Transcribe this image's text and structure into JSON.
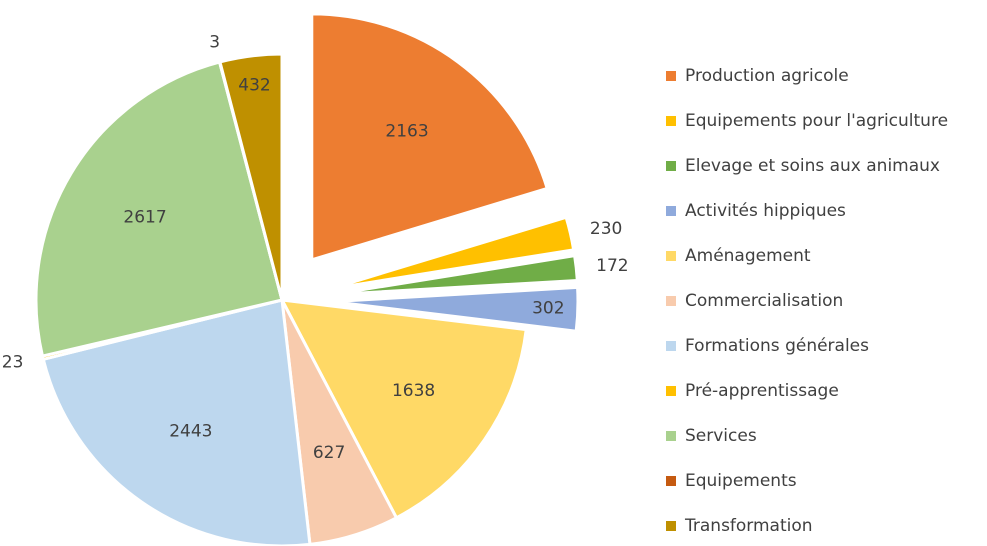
{
  "chart_data": {
    "type": "pie",
    "categories": [
      "Production agricole",
      "Equipements pour l'agriculture",
      "Elevage et soins aux animaux",
      "Activités hippiques",
      "Aménagement",
      "Commercialisation",
      "Formations générales",
      "Pré-apprentissage",
      "Services",
      "Equipements",
      "Transformation"
    ],
    "values": [
      2163,
      230,
      172,
      302,
      1638,
      627,
      2443,
      23,
      2617,
      3,
      432
    ],
    "colors": [
      "#ED7D31",
      "#FFC000",
      "#70AD47",
      "#8FAADC",
      "#FFD966",
      "#F8CBAD",
      "#BDD7EE",
      "#FFC000",
      "#A9D18E",
      "#C55A11",
      "#BF9000"
    ],
    "explode": [
      0,
      1,
      2,
      3
    ],
    "legend": "right"
  }
}
